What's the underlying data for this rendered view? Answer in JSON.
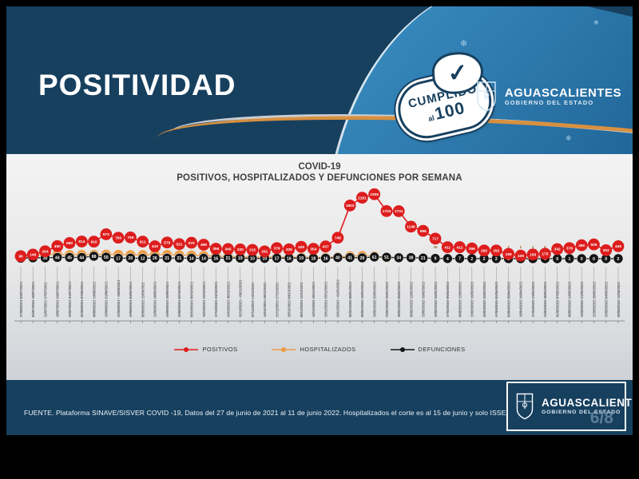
{
  "slide": {
    "title": "POSITIVIDAD",
    "badge": {
      "word": "CUMPLIDO",
      "al": "al",
      "value": "100",
      "check": "✓"
    },
    "logo": {
      "name": "AGUASCALIENTES",
      "subtitle": "GOBIERNO DEL ESTADO"
    },
    "page_indicator": "6/8",
    "source": "FUENTE. Plataforma SINAVE/SISVER COVID -19, Datos del 27 de junio de 2021 al 11 de junio 2022.  Hospitalizados el corte es al 15 de junio y solo ISSEA"
  },
  "colors": {
    "header_navy": "#17405f",
    "light_blue": "#2e7cb2",
    "accent_orange": "#d8903f",
    "positivos_red": "#dd1d1d",
    "hospitalizados_orange": "#ee9b40",
    "defunciones_black": "#141414",
    "chart_bg": "#e6e6e7"
  },
  "chart_data": {
    "type": "line",
    "title": "COVID-19",
    "subtitle": "POSITIVOS, HOSPITALIZADOS Y DEFUNCIONES POR SEMANA",
    "ylim": [
      0,
      2400
    ],
    "grid": false,
    "legend_position": "bottom",
    "marker_labels": true,
    "categories": [
      "27/06/2021 03/07/2021",
      "04/07/2021 10/07/2021",
      "11/07/2021 17/07/2021",
      "18/07/2021 24/07/2021",
      "25/07/2021 31/07/2021",
      "01/08/2021 07/08/2021",
      "08/08/2021 14/08/2021",
      "15/08/2021 21/08/2021",
      "22/08/2021 - 28/08/2021",
      "29/08/2021 04/09/2021",
      "05/09/2021 11/09/2021",
      "12/09/2021 18/09/2021",
      "19/09/2021 25/09/2021",
      "26/09/2021 02/10/2021",
      "03/10/2021 09/10/2021",
      "10/10/2021 16/10/2021",
      "17/10/2021 23/10/2021",
      "24/10/2021 30/10/2021",
      "31/10/2021 - 06/11/2021",
      "07/11/2021 13/11/2021",
      "14/11/2021 20/11/2021",
      "21/11/2021 27/11/2021",
      "28/11/2021 04/12/2021",
      "05/12/2021 11/12/2021",
      "12/12/2021 18/12/2021",
      "19/12/2021 25/12/2021",
      "26/12/2021 - 01/01/2022",
      "02/01/2022 08/01/2022",
      "09/01/2022 15/01/2022",
      "16/01/2022 22/01/2022",
      "23/01/2022 29/01/2022",
      "30/01/2022 05/02/2022",
      "06/02/2022 12/02/2022",
      "13/02/2022 19/02/2022",
      "20/02/2022 26/02/2022",
      "27/02/2022 05/03/2022",
      "06/03/2022 12/03/2022",
      "13/03/2022 19/03/2022",
      "20/03/2022 26/03/2022",
      "27/03/2022 02/04/2022",
      "03/04/2022 09/04/2022",
      "10/04/2022 16/04/2022",
      "17/04/2022 23/04/2022",
      "24/04/2022 30/04/2022",
      "01/05/2022 07/05/2022",
      "08/05/2022 14/05/2022",
      "15/05/2022 21/05/2022",
      "22/05/2022 28/05/2022",
      "29/05/2022 04/06/2022",
      "05/06/2022 11/06/2022"
    ],
    "series": [
      {
        "name": "POSITIVOS",
        "color": "#dd1d1d",
        "values": [
          90,
          146,
          264,
          450,
          560,
          614,
          610,
          873,
          750,
          759,
          611,
          443,
          579,
          521,
          570,
          499,
          356,
          345,
          330,
          315,
          261,
          379,
          335,
          425,
          354,
          437,
          748,
          1902,
          2181,
          2306,
          1704,
          1701,
          1146,
          996,
          717,
          411,
          412,
          366,
          292,
          292,
          169,
          109,
          150,
          175,
          342,
          378,
          480,
          509,
          302,
          445
        ]
      },
      {
        "name": "HOSPITALIZADOS",
        "color": "#ee9b40",
        "values": [
          90,
          117,
          150,
          147,
          136,
          143,
          145,
          152,
          147,
          137,
          135,
          142,
          143,
          130,
          121,
          105,
          88,
          75,
          66,
          58,
          52,
          55,
          48,
          50,
          45,
          47,
          62,
          93,
          105,
          91,
          38,
          44,
          43,
          32,
          15,
          10,
          8,
          5,
          3,
          5,
          2,
          1,
          1,
          0,
          1,
          0,
          1,
          0,
          0,
          1
        ]
      },
      {
        "name": "DEFUNCIONES",
        "color": "#141414",
        "values": [
          19,
          30,
          30,
          44,
          45,
          44,
          88,
          55,
          17,
          20,
          12,
          26,
          21,
          21,
          14,
          14,
          16,
          21,
          19,
          10,
          10,
          17,
          16,
          19,
          18,
          16,
          40,
          41,
          29,
          61,
          51,
          34,
          38,
          21,
          9,
          4,
          7,
          2,
          2,
          2,
          1,
          1,
          1,
          0,
          0,
          1,
          0,
          0,
          0,
          2
        ]
      }
    ]
  }
}
